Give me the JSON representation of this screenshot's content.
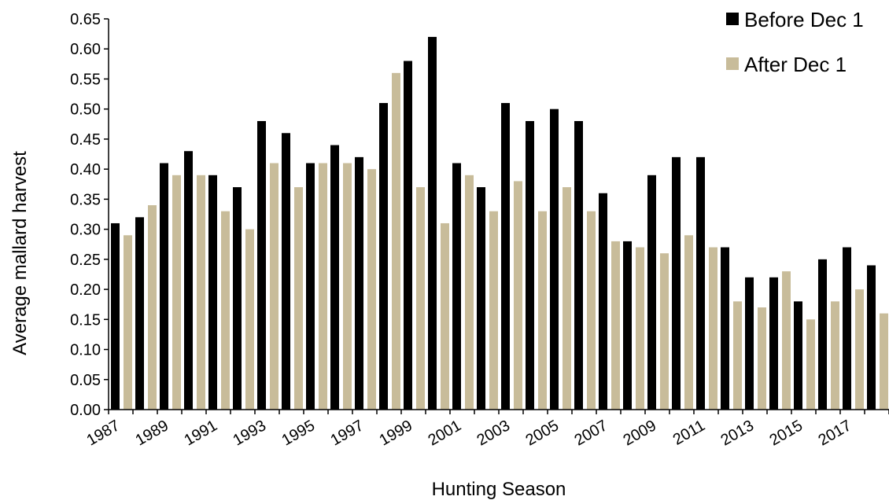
{
  "chart_data": {
    "type": "bar",
    "title": "",
    "xlabel": "Hunting Season",
    "ylabel": "Average mallard harvest",
    "ylim": [
      0,
      0.65
    ],
    "yticks": [
      "0.00",
      "0.05",
      "0.10",
      "0.15",
      "0.20",
      "0.25",
      "0.30",
      "0.35",
      "0.40",
      "0.45",
      "0.50",
      "0.55",
      "0.60",
      "0.65"
    ],
    "categories": [
      1987,
      1988,
      1989,
      1990,
      1991,
      1992,
      1993,
      1994,
      1995,
      1996,
      1997,
      1998,
      1999,
      2000,
      2001,
      2002,
      2003,
      2004,
      2005,
      2006,
      2007,
      2008,
      2009,
      2010,
      2011,
      2012,
      2013,
      2014,
      2015,
      2016,
      2017,
      2018
    ],
    "xtick_labels": [
      "1987",
      "1989",
      "1991",
      "1993",
      "1995",
      "1997",
      "1999",
      "2001",
      "2003",
      "2005",
      "2007",
      "2009",
      "2011",
      "2013",
      "2015",
      "2017"
    ],
    "series": [
      {
        "name": "Before Dec 1",
        "color": "#000000",
        "values": [
          0.31,
          0.32,
          0.41,
          0.43,
          0.39,
          0.37,
          0.48,
          0.46,
          0.41,
          0.44,
          0.42,
          0.51,
          0.58,
          0.62,
          0.41,
          0.37,
          0.51,
          0.48,
          0.5,
          0.48,
          0.36,
          0.28,
          0.39,
          0.42,
          0.42,
          0.27,
          0.22,
          0.22,
          0.18,
          0.25,
          0.27,
          0.24
        ]
      },
      {
        "name": "After Dec 1",
        "color": "#c8bc9a",
        "values": [
          0.29,
          0.34,
          0.39,
          0.39,
          0.33,
          0.3,
          0.41,
          0.37,
          0.41,
          0.41,
          0.4,
          0.56,
          0.37,
          0.31,
          0.39,
          0.33,
          0.38,
          0.33,
          0.37,
          0.33,
          0.28,
          0.27,
          0.26,
          0.29,
          0.27,
          0.18,
          0.17,
          0.23,
          0.15,
          0.18,
          0.2,
          0.16
        ]
      }
    ],
    "grid": false,
    "legend": "top-right"
  }
}
